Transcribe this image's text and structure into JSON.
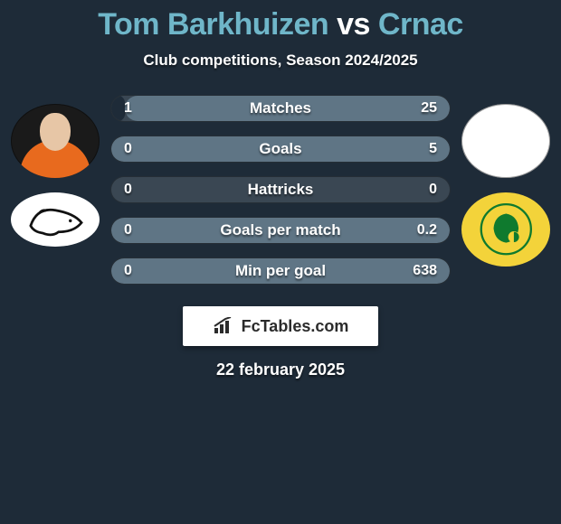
{
  "background_color": "#1e2b38",
  "title": {
    "player1": "Tom Barkhuizen",
    "vs": "vs",
    "player2": "Crnac",
    "player_color": "#6fb6c9",
    "vs_color": "#ffffff",
    "fontsize": 34
  },
  "subtitle": {
    "text": "Club competitions, Season 2024/2025",
    "fontsize": 17,
    "color": "#ffffff"
  },
  "left_side": {
    "avatar_bg": "#1a1a1a",
    "jersey_color": "#e86a1e",
    "club_badge_bg": "#ffffff",
    "club_badge_fg": "#111111"
  },
  "right_side": {
    "avatar_bg": "#ffffff",
    "club_badge_bg": "#f3d33a",
    "club_badge_fg": "#0f7a2e"
  },
  "bars": {
    "bar_bg": "#3a4753",
    "left_fill_color": "#1e2b38",
    "right_fill_color": "#5f7585",
    "label_color": "#ffffff",
    "value_color": "#ffffff",
    "radius": 15,
    "height": 30,
    "rows": [
      {
        "label": "Matches",
        "left": "1",
        "right": "25",
        "left_pct": 4,
        "right_pct": 96
      },
      {
        "label": "Goals",
        "left": "0",
        "right": "5",
        "left_pct": 0,
        "right_pct": 100
      },
      {
        "label": "Hattricks",
        "left": "0",
        "right": "0",
        "left_pct": 0,
        "right_pct": 0
      },
      {
        "label": "Goals per match",
        "left": "0",
        "right": "0.2",
        "left_pct": 0,
        "right_pct": 100
      },
      {
        "label": "Min per goal",
        "left": "0",
        "right": "638",
        "left_pct": 0,
        "right_pct": 100
      }
    ]
  },
  "brand": {
    "text": "FcTables.com",
    "box_bg": "#ffffff",
    "text_color": "#2b2b2b"
  },
  "date": {
    "text": "22 february 2025",
    "color": "#ffffff",
    "fontsize": 18
  }
}
